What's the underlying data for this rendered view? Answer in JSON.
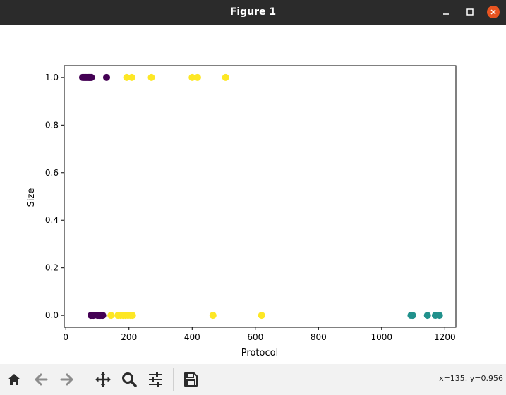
{
  "window": {
    "title": "Figure 1",
    "titlebar_color": "#2b2b2b",
    "close_color": "#e95420"
  },
  "toolbar": {
    "buttons": [
      {
        "icon": "home-icon",
        "label": "Home"
      },
      {
        "icon": "back-arrow-icon",
        "label": "Back"
      },
      {
        "icon": "forward-arrow-icon",
        "label": "Forward"
      },
      {
        "icon": "pan-move-icon",
        "label": "Pan"
      },
      {
        "icon": "zoom-magnifier-icon",
        "label": "Zoom"
      },
      {
        "icon": "subplots-config-icon",
        "label": "Configure subplots"
      },
      {
        "icon": "save-floppy-icon",
        "label": "Save"
      }
    ],
    "coords": "x=135. y=0.956"
  },
  "chart_data": {
    "type": "scatter",
    "title": "",
    "xlabel": "Protocol",
    "ylabel": "Size",
    "xlim": [
      -5,
      1235
    ],
    "ylim": [
      -0.05,
      1.05
    ],
    "xticks": [
      0,
      200,
      400,
      600,
      800,
      1000,
      1200
    ],
    "yticks": [
      0.0,
      0.2,
      0.4,
      0.6,
      0.8,
      1.0
    ],
    "xtick_labels": [
      "0",
      "200",
      "400",
      "600",
      "800",
      "1000",
      "1200"
    ],
    "ytick_labels": [
      "0.0",
      "0.2",
      "0.4",
      "0.6",
      "0.8",
      "1.0"
    ],
    "grid": false,
    "series": [
      {
        "color": "#440154",
        "points": [
          [
            53,
            1
          ],
          [
            57,
            1
          ],
          [
            60,
            1
          ],
          [
            63,
            1
          ],
          [
            66,
            1
          ],
          [
            69,
            1
          ],
          [
            72,
            1
          ],
          [
            75,
            1
          ],
          [
            78,
            1
          ],
          [
            81,
            1
          ],
          [
            129,
            1
          ],
          [
            80,
            0
          ],
          [
            84,
            0
          ],
          [
            88,
            0
          ],
          [
            100,
            0
          ],
          [
            105,
            0
          ],
          [
            111,
            0
          ],
          [
            117,
            0
          ]
        ]
      },
      {
        "color": "#fde725",
        "points": [
          [
            193,
            1
          ],
          [
            209,
            1
          ],
          [
            271,
            1
          ],
          [
            400,
            1
          ],
          [
            417,
            1
          ],
          [
            506,
            1
          ],
          [
            143,
            0
          ],
          [
            165,
            0
          ],
          [
            173,
            0
          ],
          [
            181,
            0
          ],
          [
            189,
            0
          ],
          [
            197,
            0
          ],
          [
            205,
            0
          ],
          [
            211,
            0
          ],
          [
            466,
            0
          ],
          [
            620,
            0
          ]
        ]
      },
      {
        "color": "#21918c",
        "points": [
          [
            1093,
            0
          ],
          [
            1098,
            0
          ],
          [
            1145,
            0
          ],
          [
            1170,
            0
          ],
          [
            1183,
            0
          ]
        ]
      }
    ]
  }
}
